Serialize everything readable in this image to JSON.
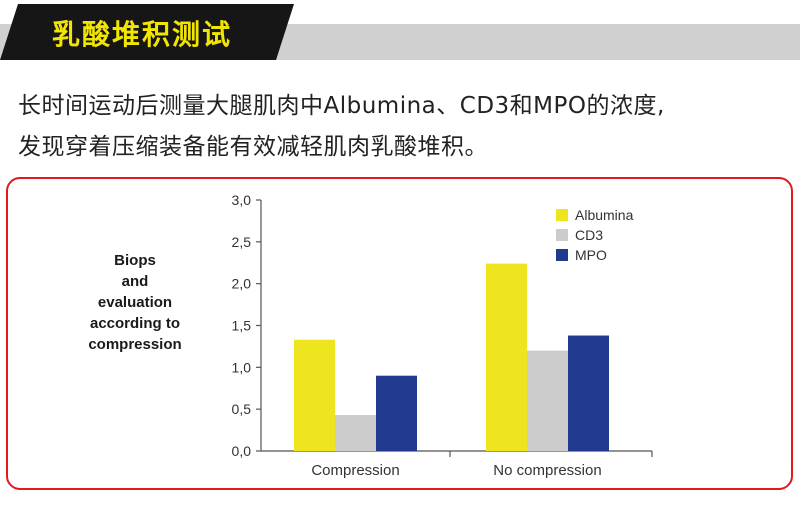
{
  "header": {
    "title": "乳酸堆积测试"
  },
  "description": {
    "line1": "长时间运动后测量大腿肌肉中Albumina、CD3和MPO的浓度,",
    "line2": "发现穿着压缩装备能有效减轻肌肉乳酸堆积。"
  },
  "colors": {
    "accent_yellow": "#f2e600",
    "frame_red": "#e2191e",
    "albumina": "#efe51e",
    "cd3": "#cccccc",
    "mpo": "#213a8f"
  },
  "chart_data": {
    "type": "bar",
    "ylabel": "Biops\nand\nevaluation\naccording to\ncompression",
    "ylim": [
      0,
      3
    ],
    "yticks": [
      "0,0",
      "0,5",
      "1,0",
      "1,5",
      "2,0",
      "2,5",
      "3,0"
    ],
    "categories": [
      "Compression",
      "No compression"
    ],
    "series": [
      {
        "name": "Albumina",
        "values": [
          1.33,
          2.24
        ]
      },
      {
        "name": "CD3",
        "values": [
          0.43,
          1.2
        ]
      },
      {
        "name": "MPO",
        "values": [
          0.9,
          1.38
        ]
      }
    ],
    "legend_position": "top-right",
    "grid": false
  }
}
